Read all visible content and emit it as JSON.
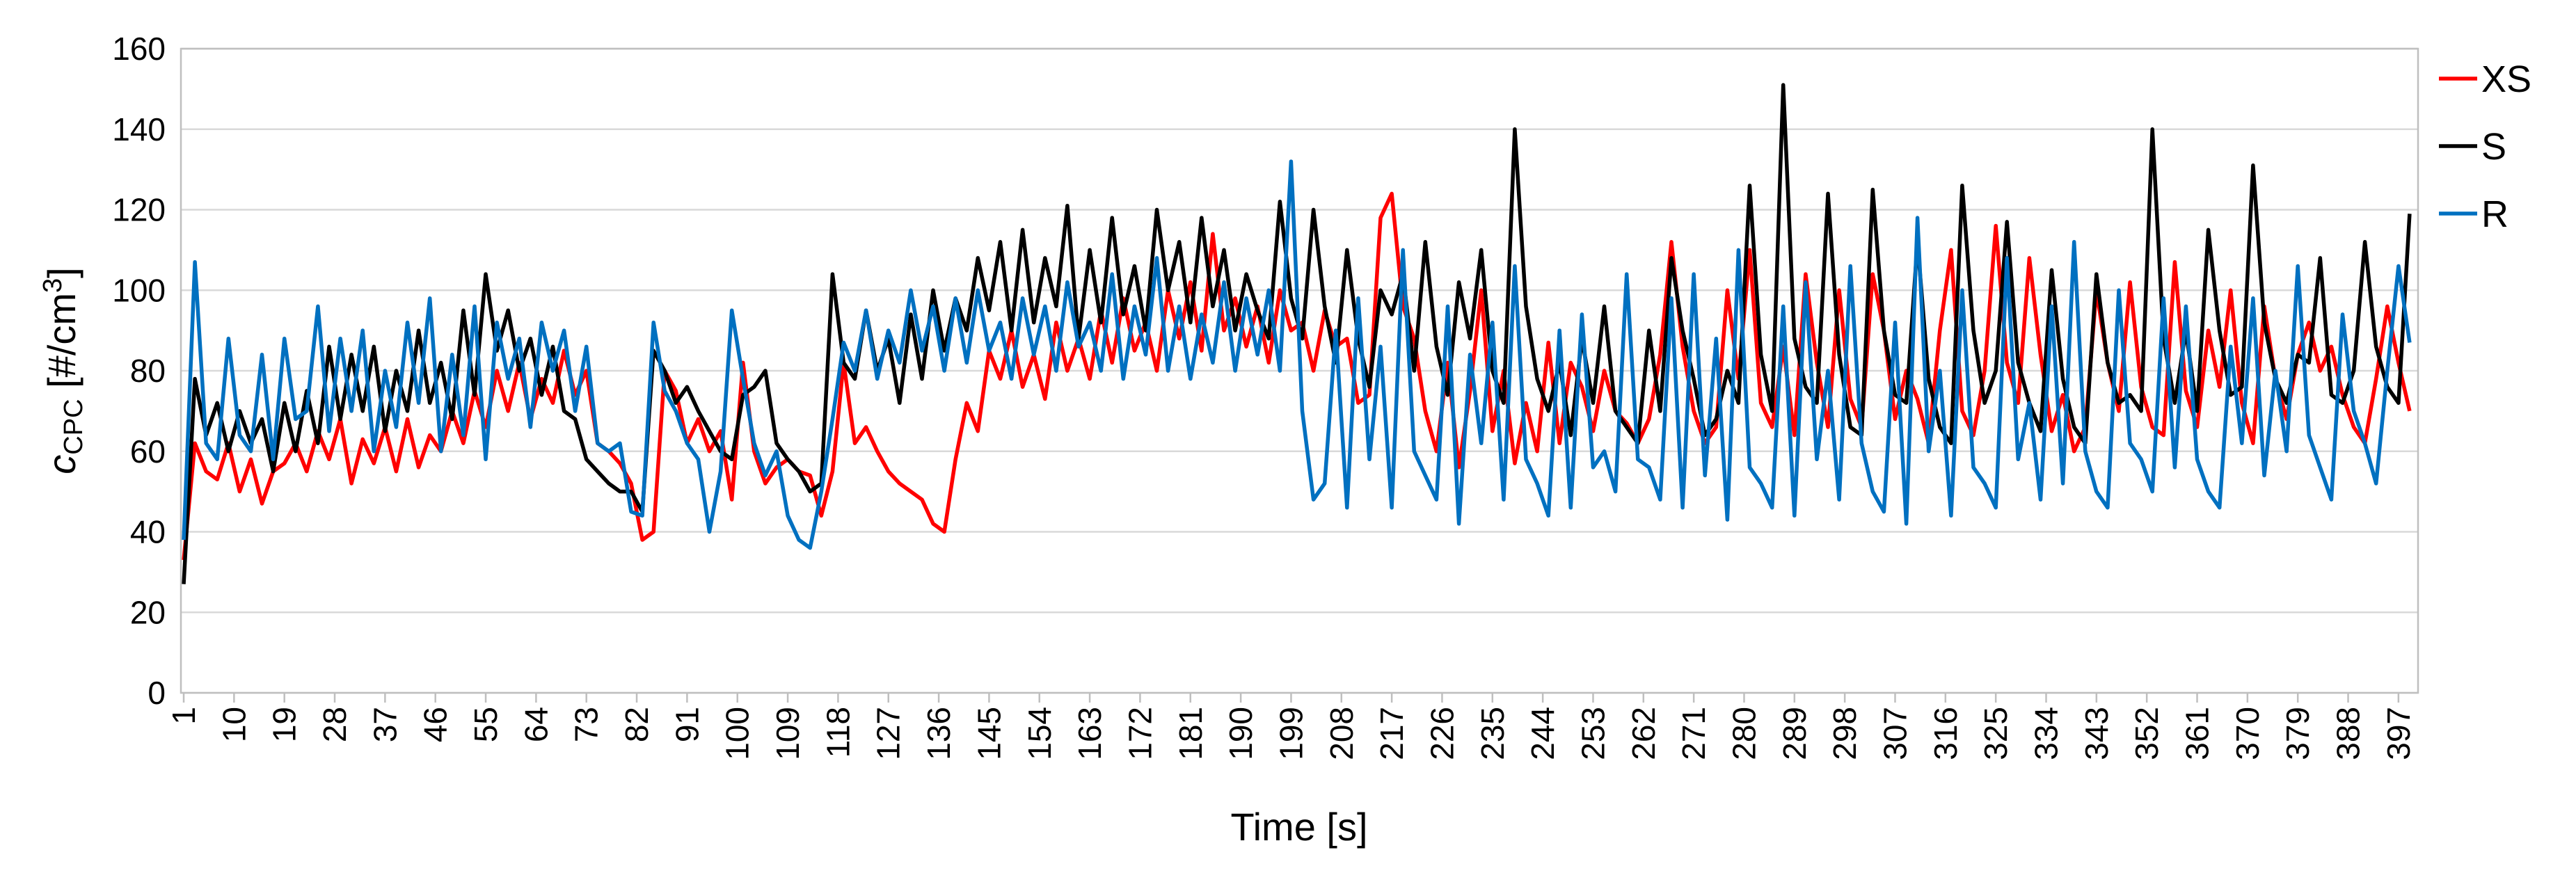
{
  "chart_data": {
    "type": "line",
    "ylabel_parts": [
      "c",
      "CPC",
      " [#/cm",
      "3",
      "]"
    ],
    "xlabel": "Time [s]",
    "x": [
      1,
      3,
      5,
      7,
      9,
      11,
      13,
      15,
      17,
      19,
      21,
      23,
      25,
      27,
      29,
      31,
      33,
      35,
      37,
      39,
      41,
      43,
      45,
      47,
      49,
      51,
      53,
      55,
      57,
      59,
      61,
      63,
      65,
      67,
      69,
      71,
      73,
      75,
      77,
      79,
      81,
      83,
      85,
      87,
      89,
      91,
      93,
      95,
      97,
      99,
      101,
      103,
      105,
      107,
      109,
      111,
      113,
      115,
      117,
      119,
      121,
      123,
      125,
      127,
      129,
      131,
      133,
      135,
      137,
      139,
      141,
      143,
      145,
      147,
      149,
      151,
      153,
      155,
      157,
      159,
      161,
      163,
      165,
      167,
      169,
      171,
      173,
      175,
      177,
      179,
      181,
      183,
      185,
      187,
      189,
      191,
      193,
      195,
      197,
      199,
      201,
      203,
      205,
      207,
      209,
      211,
      213,
      215,
      217,
      219,
      221,
      223,
      225,
      227,
      229,
      231,
      233,
      235,
      237,
      239,
      241,
      243,
      245,
      247,
      249,
      251,
      253,
      255,
      257,
      259,
      261,
      263,
      265,
      267,
      269,
      271,
      273,
      275,
      277,
      279,
      281,
      283,
      285,
      287,
      289,
      291,
      293,
      295,
      297,
      299,
      301,
      303,
      305,
      307,
      309,
      311,
      313,
      315,
      317,
      319,
      321,
      323,
      325,
      327,
      329,
      331,
      333,
      335,
      337,
      339,
      341,
      343,
      345,
      347,
      349,
      351,
      353,
      355,
      357,
      359,
      361,
      363,
      365,
      367,
      369,
      371,
      373,
      375,
      377,
      379,
      381,
      383,
      385,
      387,
      389,
      391,
      393,
      395,
      397,
      399
    ],
    "series": [
      {
        "name": "XS",
        "color": "#ff0000",
        "values": [
          33,
          62,
          55,
          53,
          62,
          50,
          58,
          47,
          55,
          57,
          62,
          55,
          65,
          58,
          68,
          52,
          63,
          57,
          66,
          55,
          68,
          56,
          64,
          60,
          70,
          62,
          75,
          66,
          80,
          70,
          82,
          68,
          78,
          72,
          85,
          74,
          80,
          62,
          60,
          57,
          52,
          38,
          40,
          80,
          75,
          62,
          68,
          60,
          65,
          48,
          82,
          60,
          52,
          56,
          58,
          55,
          54,
          44,
          55,
          82,
          62,
          66,
          60,
          55,
          52,
          50,
          48,
          42,
          40,
          58,
          72,
          65,
          85,
          78,
          90,
          76,
          84,
          73,
          92,
          80,
          88,
          78,
          95,
          82,
          98,
          85,
          92,
          80,
          100,
          88,
          102,
          85,
          114,
          90,
          98,
          86,
          96,
          82,
          100,
          90,
          92,
          80,
          95,
          86,
          88,
          72,
          74,
          118,
          124,
          96,
          88,
          70,
          60,
          82,
          56,
          75,
          100,
          65,
          80,
          57,
          72,
          60,
          87,
          62,
          82,
          76,
          65,
          80,
          70,
          67,
          62,
          68,
          84,
          112,
          86,
          70,
          62,
          66,
          100,
          78,
          110,
          72,
          66,
          86,
          64,
          104,
          82,
          66,
          100,
          73,
          66,
          104,
          90,
          68,
          80,
          73,
          62,
          90,
          110,
          70,
          64,
          80,
          116,
          82,
          72,
          108,
          84,
          65,
          74,
          60,
          66,
          100,
          82,
          70,
          102,
          76,
          66,
          64,
          107,
          75,
          66,
          90,
          76,
          100,
          72,
          62,
          96,
          78,
          68,
          84,
          92,
          80,
          86,
          74,
          66,
          62,
          78,
          96,
          82,
          70
        ]
      },
      {
        "name": "S",
        "color": "#000000",
        "values": [
          27,
          78,
          64,
          72,
          60,
          70,
          62,
          68,
          55,
          72,
          60,
          75,
          62,
          86,
          68,
          84,
          70,
          86,
          65,
          80,
          70,
          90,
          72,
          82,
          68,
          95,
          74,
          104,
          85,
          95,
          80,
          88,
          74,
          86,
          70,
          68,
          58,
          55,
          52,
          50,
          50,
          45,
          85,
          80,
          72,
          76,
          70,
          65,
          60,
          58,
          74,
          76,
          80,
          62,
          58,
          55,
          50,
          52,
          104,
          82,
          78,
          95,
          80,
          88,
          72,
          94,
          78,
          100,
          85,
          98,
          90,
          108,
          95,
          112,
          90,
          115,
          92,
          108,
          96,
          121,
          88,
          110,
          92,
          118,
          94,
          106,
          90,
          120,
          100,
          112,
          92,
          118,
          96,
          110,
          90,
          104,
          95,
          88,
          122,
          98,
          88,
          120,
          96,
          82,
          110,
          88,
          76,
          100,
          94,
          104,
          80,
          112,
          86,
          74,
          102,
          88,
          110,
          80,
          72,
          140,
          96,
          78,
          70,
          82,
          64,
          88,
          72,
          96,
          70,
          66,
          62,
          90,
          70,
          108,
          90,
          78,
          64,
          68,
          80,
          72,
          126,
          84,
          70,
          151,
          88,
          76,
          72,
          124,
          84,
          66,
          64,
          125,
          90,
          74,
          72,
          112,
          78,
          66,
          62,
          126,
          90,
          72,
          80,
          117,
          82,
          72,
          65,
          105,
          78,
          66,
          62,
          104,
          82,
          72,
          74,
          70,
          140,
          88,
          72,
          90,
          70,
          115,
          90,
          74,
          76,
          131,
          92,
          78,
          72,
          84,
          82,
          108,
          74,
          72,
          80,
          112,
          86,
          76,
          72,
          119
        ]
      },
      {
        "name": "R",
        "color": "#0070c0",
        "values": [
          38,
          107,
          62,
          58,
          88,
          64,
          60,
          84,
          58,
          88,
          68,
          70,
          96,
          65,
          88,
          70,
          90,
          60,
          80,
          66,
          92,
          72,
          98,
          60,
          84,
          64,
          96,
          58,
          92,
          78,
          88,
          66,
          92,
          80,
          90,
          70,
          86,
          62,
          60,
          62,
          45,
          44,
          92,
          75,
          70,
          62,
          58,
          40,
          55,
          95,
          78,
          62,
          54,
          60,
          44,
          38,
          36,
          50,
          68,
          87,
          80,
          95,
          78,
          90,
          82,
          100,
          85,
          96,
          80,
          98,
          82,
          100,
          85,
          92,
          78,
          98,
          84,
          96,
          80,
          102,
          86,
          92,
          80,
          104,
          78,
          96,
          84,
          108,
          80,
          96,
          78,
          94,
          82,
          102,
          80,
          98,
          84,
          100,
          80,
          132,
          70,
          48,
          52,
          90,
          46,
          98,
          58,
          86,
          46,
          110,
          60,
          54,
          48,
          96,
          42,
          84,
          62,
          92,
          48,
          106,
          58,
          52,
          44,
          90,
          46,
          94,
          56,
          60,
          50,
          104,
          58,
          56,
          48,
          98,
          46,
          104,
          54,
          88,
          43,
          110,
          56,
          52,
          46,
          96,
          44,
          102,
          58,
          80,
          48,
          106,
          62,
          50,
          45,
          92,
          42,
          118,
          60,
          80,
          44,
          100,
          56,
          52,
          46,
          108,
          58,
          72,
          48,
          96,
          52,
          112,
          60,
          50,
          46,
          100,
          62,
          58,
          50,
          98,
          56,
          96,
          58,
          50,
          46,
          86,
          62,
          98,
          54,
          80,
          60,
          106,
          64,
          56,
          48,
          94,
          70,
          62,
          52,
          80,
          106,
          87
        ]
      }
    ],
    "xlim": [
      0.5,
      400.5
    ],
    "xticks": [
      1,
      10,
      19,
      28,
      37,
      46,
      55,
      64,
      73,
      82,
      91,
      100,
      109,
      118,
      127,
      136,
      145,
      154,
      163,
      172,
      181,
      190,
      199,
      208,
      217,
      226,
      235,
      244,
      253,
      262,
      271,
      280,
      289,
      298,
      307,
      316,
      325,
      334,
      343,
      352,
      361,
      370,
      379,
      388,
      397
    ],
    "ylim": [
      0,
      160
    ],
    "yticks": [
      0,
      20,
      40,
      60,
      80,
      100,
      120,
      140,
      160
    ],
    "grid": true,
    "legend": "right"
  }
}
